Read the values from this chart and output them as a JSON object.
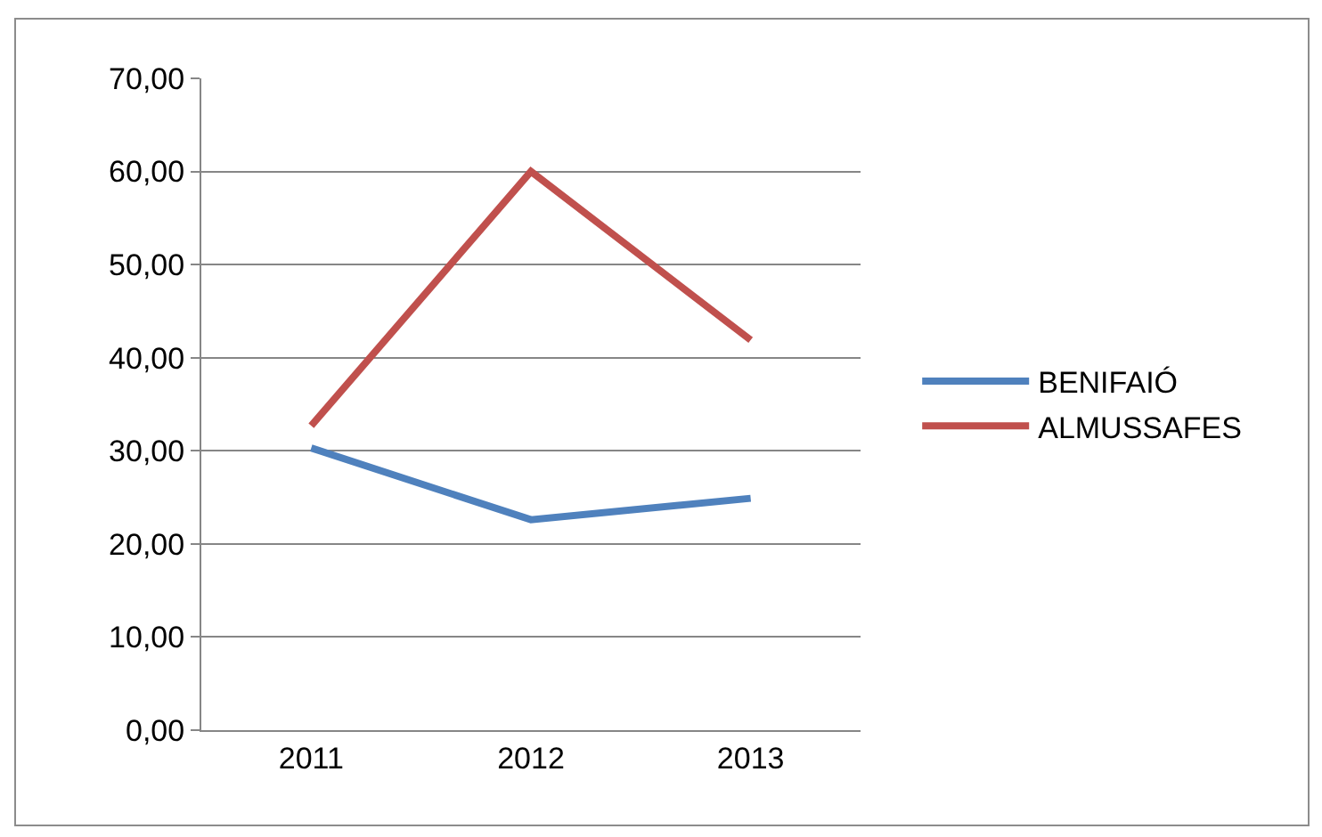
{
  "chart_data": {
    "type": "line",
    "categories": [
      "2011",
      "2012",
      "2013"
    ],
    "series": [
      {
        "name": "BENIFAIÓ",
        "color": "#4f81bd",
        "values": [
          30.3,
          22.6,
          24.9
        ]
      },
      {
        "name": "ALMUSSAFES",
        "color": "#c0504d",
        "values": [
          32.7,
          60.0,
          41.9
        ]
      }
    ],
    "ylim": [
      0,
      70
    ],
    "yticks": [
      {
        "value": 0,
        "label": "0,00"
      },
      {
        "value": 10,
        "label": "10,00"
      },
      {
        "value": 20,
        "label": "20,00"
      },
      {
        "value": 30,
        "label": "30,00"
      },
      {
        "value": 40,
        "label": "40,00"
      },
      {
        "value": 50,
        "label": "50,00"
      },
      {
        "value": 60,
        "label": "60,00"
      },
      {
        "value": 70,
        "label": "70,00"
      }
    ],
    "grid": "y",
    "legend": "right",
    "marker": "none",
    "line_style": "solid"
  }
}
